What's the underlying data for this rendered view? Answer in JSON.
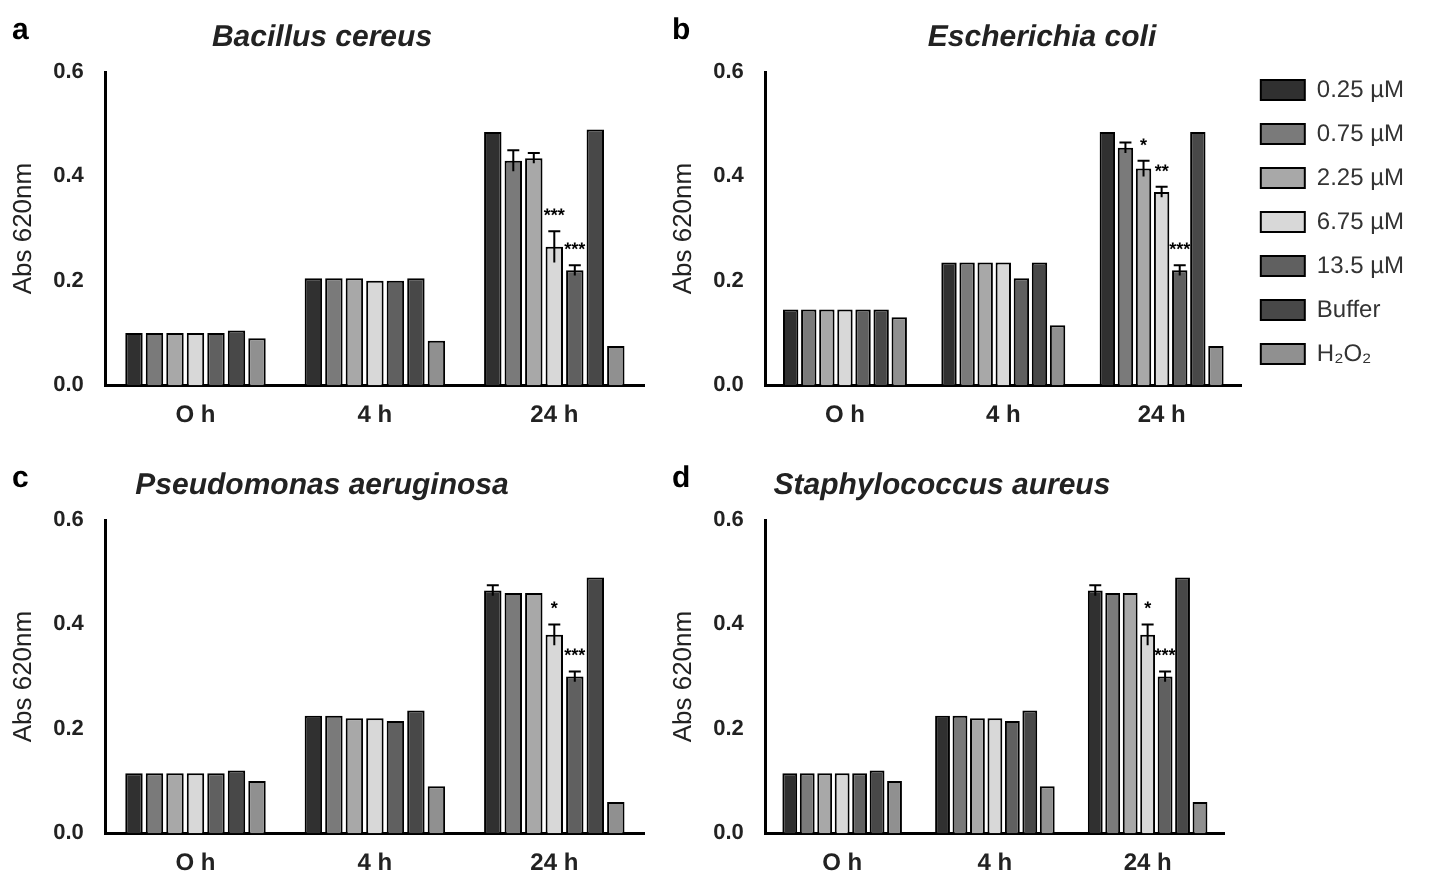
{
  "chart_data": [
    {
      "type": "bar",
      "title": "Bacillus cereus",
      "annotations": [
        "a"
      ],
      "ylabel": "Abs 620nm",
      "categories": [
        "O h",
        "4 h",
        "24 h"
      ],
      "ylim": [
        0,
        0.6
      ],
      "yticks": [
        {
          "value": 0,
          "label": "0.0"
        },
        {
          "value": 0.2,
          "label": "0.2"
        },
        {
          "value": 0.4,
          "label": "0.4"
        },
        {
          "value": 0.6,
          "label": "0.6"
        }
      ],
      "grid": false,
      "legend": false,
      "series": [
        {
          "color": "#303030",
          "values": [
            0.1,
            0.205,
            0.485
          ],
          "errors": [
            null,
            null,
            null
          ]
        },
        {
          "color": "#7a7a7a",
          "values": [
            0.1,
            0.205,
            0.43
          ],
          "errors": [
            null,
            null,
            0.02
          ]
        },
        {
          "color": "#a8a8a8",
          "values": [
            0.1,
            0.205,
            0.435
          ],
          "errors": [
            null,
            null,
            0.01
          ]
        },
        {
          "color": "#d8d8d8",
          "values": [
            0.1,
            0.2,
            0.265
          ],
          "errors": [
            null,
            null,
            0.03
          ],
          "value_labels": [
            null,
            null,
            "***"
          ]
        },
        {
          "color": "#606060",
          "values": [
            0.1,
            0.2,
            0.22
          ],
          "errors": [
            null,
            null,
            0.01
          ],
          "value_labels": [
            null,
            null,
            "***"
          ]
        },
        {
          "color": "#484848",
          "values": [
            0.105,
            0.205,
            0.49
          ],
          "errors": [
            null,
            null,
            null
          ]
        },
        {
          "color": "#909090",
          "values": [
            0.09,
            0.085,
            0.075
          ],
          "errors": [
            null,
            null,
            null
          ]
        }
      ]
    },
    {
      "type": "bar",
      "title": "Escherichia coli",
      "annotations": [
        "b"
      ],
      "ylabel": "Abs 620nm",
      "categories": [
        "O h",
        "4 h",
        "24 h"
      ],
      "ylim": [
        0,
        0.6
      ],
      "yticks": [
        {
          "value": 0,
          "label": "0.0"
        },
        {
          "value": 0.2,
          "label": "0.2"
        },
        {
          "value": 0.4,
          "label": "0.4"
        },
        {
          "value": 0.6,
          "label": "0.6"
        }
      ],
      "grid": false,
      "legend": "right",
      "series": [
        {
          "name": "0.25 µM",
          "color": "#303030",
          "values": [
            0.145,
            0.235,
            0.485
          ],
          "errors": [
            null,
            null,
            null
          ]
        },
        {
          "name": "0.75 µM",
          "color": "#7a7a7a",
          "values": [
            0.145,
            0.235,
            0.455
          ],
          "errors": [
            null,
            null,
            0.01
          ]
        },
        {
          "name": "2.25 µM",
          "color": "#a8a8a8",
          "values": [
            0.145,
            0.235,
            0.415
          ],
          "errors": [
            null,
            null,
            0.015
          ],
          "value_labels": [
            null,
            null,
            "*"
          ]
        },
        {
          "name": "6.75 µM",
          "color": "#d8d8d8",
          "values": [
            0.145,
            0.235,
            0.37
          ],
          "errors": [
            null,
            null,
            0.01
          ],
          "value_labels": [
            null,
            null,
            "**"
          ]
        },
        {
          "name": "13.5 µM",
          "color": "#606060",
          "values": [
            0.145,
            0.205,
            0.22
          ],
          "errors": [
            null,
            null,
            0.01
          ],
          "value_labels": [
            null,
            null,
            "***"
          ]
        },
        {
          "name": "Buffer",
          "color": "#484848",
          "values": [
            0.145,
            0.235,
            0.485
          ],
          "errors": [
            null,
            null,
            null
          ]
        },
        {
          "name": "H₂O₂",
          "color": "#909090",
          "values": [
            0.13,
            0.115,
            0.075
          ],
          "errors": [
            null,
            null,
            null
          ]
        }
      ]
    },
    {
      "type": "bar",
      "title": "Pseudomonas aeruginosa",
      "annotations": [
        "c"
      ],
      "ylabel": "Abs 620nm",
      "categories": [
        "O h",
        "4 h",
        "24 h"
      ],
      "ylim": [
        0,
        0.6
      ],
      "yticks": [
        {
          "value": 0,
          "label": "0.0"
        },
        {
          "value": 0.2,
          "label": "0.2"
        },
        {
          "value": 0.4,
          "label": "0.4"
        },
        {
          "value": 0.6,
          "label": "0.6"
        }
      ],
      "grid": false,
      "legend": false,
      "series": [
        {
          "color": "#303030",
          "values": [
            0.115,
            0.225,
            0.465
          ],
          "errors": [
            null,
            null,
            0.01
          ]
        },
        {
          "color": "#7a7a7a",
          "values": [
            0.115,
            0.225,
            0.46
          ],
          "errors": [
            null,
            null,
            null
          ]
        },
        {
          "color": "#a8a8a8",
          "values": [
            0.115,
            0.22,
            0.46
          ],
          "errors": [
            null,
            null,
            null
          ]
        },
        {
          "color": "#d8d8d8",
          "values": [
            0.115,
            0.22,
            0.38
          ],
          "errors": [
            null,
            null,
            0.02
          ],
          "value_labels": [
            null,
            null,
            "*"
          ]
        },
        {
          "color": "#606060",
          "values": [
            0.115,
            0.215,
            0.3
          ],
          "errors": [
            null,
            null,
            0.01
          ],
          "value_labels": [
            null,
            null,
            "***"
          ]
        },
        {
          "color": "#484848",
          "values": [
            0.12,
            0.235,
            0.49
          ],
          "errors": [
            null,
            null,
            null
          ]
        },
        {
          "color": "#909090",
          "values": [
            0.1,
            0.09,
            0.06
          ],
          "errors": [
            null,
            null,
            null
          ]
        }
      ]
    },
    {
      "type": "bar",
      "title": "Staphylococcus aureus",
      "annotations": [
        "d"
      ],
      "ylabel": "Abs 620nm",
      "categories": [
        "O h",
        "4 h",
        "24 h"
      ],
      "ylim": [
        0,
        0.6
      ],
      "yticks": [
        {
          "value": 0,
          "label": "0.0"
        },
        {
          "value": 0.2,
          "label": "0.2"
        },
        {
          "value": 0.4,
          "label": "0.4"
        },
        {
          "value": 0.6,
          "label": "0.6"
        }
      ],
      "grid": false,
      "legend": false,
      "series": [
        {
          "color": "#303030",
          "values": [
            0.115,
            0.225,
            0.465
          ],
          "errors": [
            null,
            null,
            0.01
          ]
        },
        {
          "color": "#7a7a7a",
          "values": [
            0.115,
            0.225,
            0.46
          ],
          "errors": [
            null,
            null,
            null
          ]
        },
        {
          "color": "#a8a8a8",
          "values": [
            0.115,
            0.22,
            0.46
          ],
          "errors": [
            null,
            null,
            null
          ]
        },
        {
          "color": "#d8d8d8",
          "values": [
            0.115,
            0.22,
            0.38
          ],
          "errors": [
            null,
            null,
            0.02
          ],
          "value_labels": [
            null,
            null,
            "*"
          ]
        },
        {
          "color": "#606060",
          "values": [
            0.115,
            0.215,
            0.3
          ],
          "errors": [
            null,
            null,
            0.01
          ],
          "value_labels": [
            null,
            null,
            "***"
          ]
        },
        {
          "color": "#484848",
          "values": [
            0.12,
            0.235,
            0.49
          ],
          "errors": [
            null,
            null,
            null
          ]
        },
        {
          "color": "#909090",
          "values": [
            0.1,
            0.09,
            0.06
          ],
          "errors": [
            null,
            null,
            null
          ]
        }
      ]
    }
  ]
}
